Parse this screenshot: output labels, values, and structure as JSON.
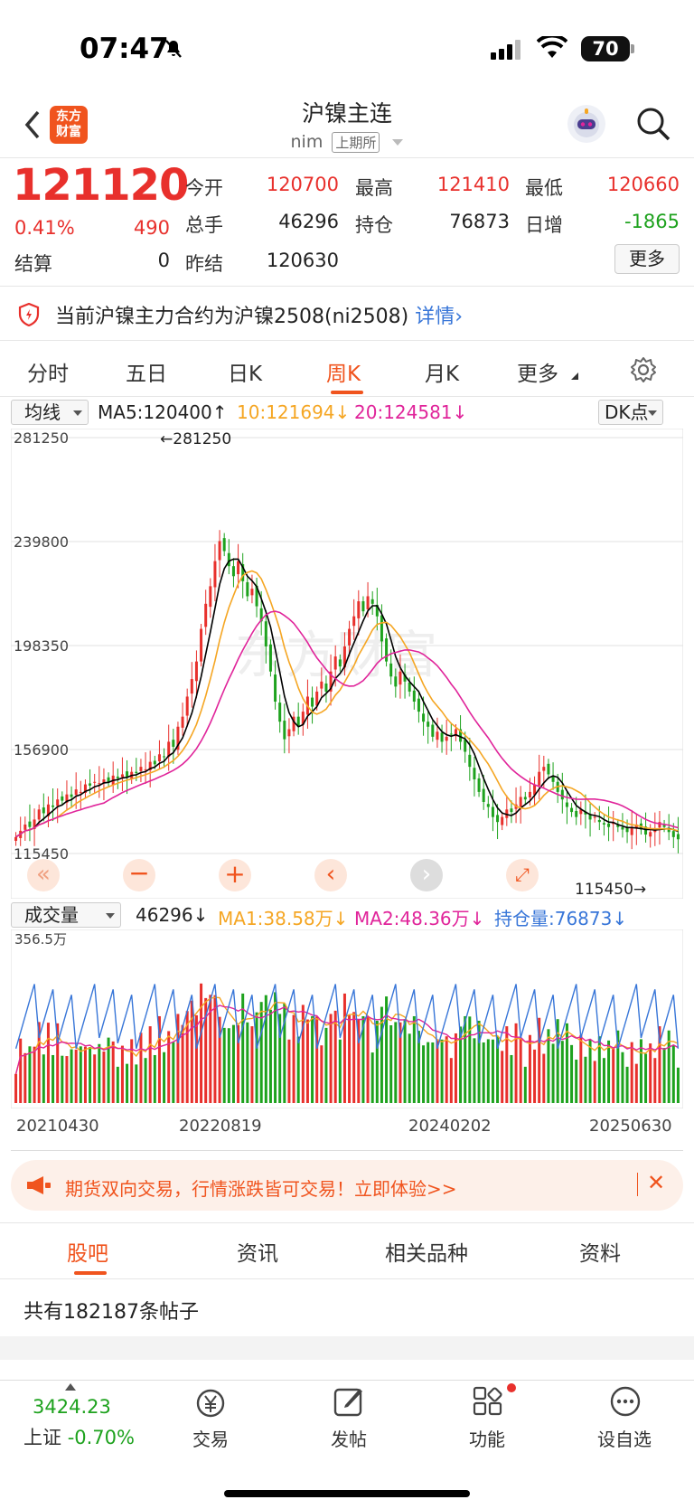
{
  "status_bar": {
    "time": "07:47",
    "battery": "70"
  },
  "header": {
    "logo_line1": "东方",
    "logo_line2": "财富",
    "title": "沪镍主连",
    "code": "nim",
    "exchange": "上期所"
  },
  "quote": {
    "price": "121120",
    "change_pct": "0.41%",
    "change": "490",
    "open_label": "今开",
    "open": "120700",
    "high_label": "最高",
    "high": "121410",
    "low_label": "最低",
    "low": "120660",
    "volume_label": "总手",
    "volume": "46296",
    "oi_label": "持仓",
    "oi": "76873",
    "daily_inc_label": "日增",
    "daily_inc": "-1865",
    "settle_label": "结算",
    "settle": "0",
    "prev_settle_label": "昨结",
    "prev_settle": "120630",
    "more_label": "更多"
  },
  "notice": {
    "text": "当前沪镍主力合约为沪镍2508(ni2508)",
    "link": "详情"
  },
  "period_tabs": [
    "分时",
    "五日",
    "日K",
    "周K",
    "月K",
    "更多"
  ],
  "active_tab": "周K",
  "ma_bar": {
    "selector": "均线",
    "ma5": "MA5:120400",
    "ma10": "10:121694",
    "ma20": "20:124581",
    "dk": "DK点"
  },
  "price_axis": [
    "281250",
    "239800",
    "198350",
    "156900",
    "115450"
  ],
  "annotations": {
    "max": "281250",
    "min": "115450"
  },
  "watermark": "东方财富",
  "volume_bar": {
    "selector": "成交量",
    "vol": "46296",
    "ma1": "MA1:38.58万",
    "ma2": "MA2:48.36万",
    "oi": "持仓量:76873",
    "axis_top": "356.5万"
  },
  "date_axis": [
    "20210430",
    "20220819",
    "20240202",
    "20250630"
  ],
  "banner": {
    "text": "期货双向交易，行情涨跌皆可交易！立即体验>>"
  },
  "lower_tabs": [
    "股吧",
    "资讯",
    "相关品种",
    "资料"
  ],
  "posts": "共有182187条帖子",
  "bottom_nav": {
    "index_value": "3424.23",
    "index_name": "上证",
    "index_change": "-0.70%",
    "items": [
      "交易",
      "发帖",
      "功能",
      "设自选"
    ]
  },
  "colors": {
    "up": "#e8302c",
    "down": "#1ea21e",
    "accent": "#f0541e",
    "ma5": "#000000",
    "ma10": "#f5a623",
    "ma20": "#e0249a",
    "oi_line": "#3876d8"
  },
  "chart_data": {
    "type": "candlestick",
    "ylim": [
      115450,
      281250
    ],
    "closes": [
      122000,
      124500,
      127000,
      126000,
      129000,
      133000,
      131500,
      135000,
      134000,
      137000,
      136500,
      139000,
      138000,
      141000,
      140000,
      143000,
      142500,
      144000,
      143500,
      145000,
      144000,
      146500,
      145500,
      147000,
      146000,
      148000,
      147500,
      150000,
      149000,
      152000,
      151000,
      155000,
      154000,
      160000,
      158000,
      166000,
      170000,
      178000,
      185000,
      192000,
      205000,
      215000,
      222000,
      232000,
      240000,
      236000,
      230000,
      226000,
      232000,
      224000,
      218000,
      221000,
      214000,
      208000,
      198000,
      188000,
      176000,
      168000,
      161000,
      165000,
      170000,
      166000,
      172000,
      178000,
      174000,
      180000,
      184000,
      180000,
      188000,
      194000,
      190000,
      198000,
      205000,
      210000,
      216000,
      212000,
      218000,
      215000,
      210000,
      200000,
      192000,
      186000,
      182000,
      188000,
      184000,
      180000,
      176000,
      172000,
      168000,
      166000,
      162000,
      164000,
      160000,
      162000,
      163000,
      165000,
      160000,
      156000,
      150000,
      145000,
      140000,
      136000,
      134000,
      130000,
      128000,
      130000,
      133000,
      132000,
      135000,
      138000,
      137000,
      140000,
      143000,
      148000,
      150000,
      147000,
      144000,
      140000,
      137000,
      134000,
      132000,
      130000,
      133000,
      131000,
      129000,
      130000,
      128000,
      127000,
      126000,
      128000,
      126000,
      125000,
      124000,
      126000,
      127000,
      125000,
      123000,
      124000,
      125000,
      128000,
      126000,
      124000,
      122000,
      121120
    ]
  }
}
